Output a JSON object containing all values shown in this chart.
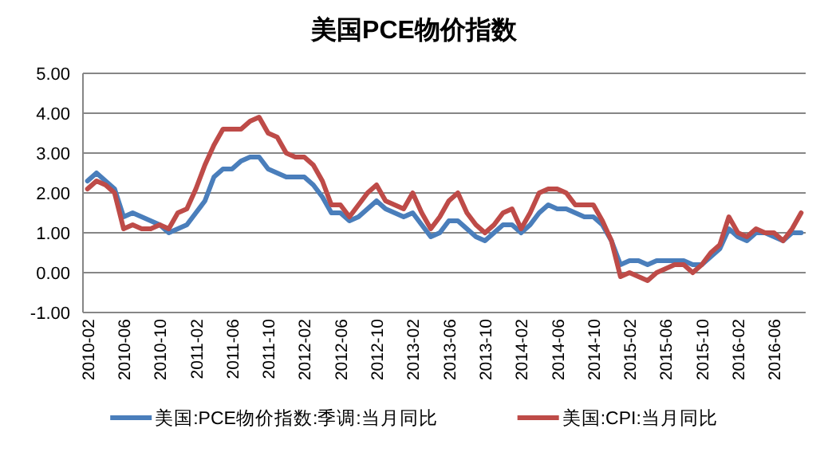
{
  "chart_data": {
    "type": "line",
    "title": "美国PCE物价指数",
    "categories": [
      "2010-02",
      null,
      null,
      null,
      "2010-06",
      null,
      null,
      null,
      "2010-10",
      null,
      null,
      null,
      "2011-02",
      null,
      null,
      null,
      "2011-06",
      null,
      null,
      null,
      "2011-10",
      null,
      null,
      null,
      "2012-02",
      null,
      null,
      null,
      "2012-06",
      null,
      null,
      null,
      "2012-10",
      null,
      null,
      null,
      "2013-02",
      null,
      null,
      null,
      "2013-06",
      null,
      null,
      null,
      "2013-10",
      null,
      null,
      null,
      "2014-02",
      null,
      null,
      null,
      "2014-06",
      null,
      null,
      null,
      "2014-10",
      null,
      null,
      null,
      "2015-02",
      null,
      null,
      null,
      "2015-06",
      null,
      null,
      null,
      "2015-10",
      null,
      null,
      null,
      "2016-02",
      null,
      null,
      null,
      "2016-06",
      null,
      null,
      null
    ],
    "series": [
      {
        "name": "美国:PCE物价指数:季调:当月同比",
        "color": "#4a7ebb",
        "values": [
          2.3,
          2.5,
          2.3,
          2.1,
          1.4,
          1.5,
          1.4,
          1.3,
          1.2,
          1.0,
          1.1,
          1.2,
          1.5,
          1.8,
          2.4,
          2.6,
          2.6,
          2.8,
          2.9,
          2.9,
          2.6,
          2.5,
          2.4,
          2.4,
          2.4,
          2.2,
          1.9,
          1.5,
          1.5,
          1.3,
          1.4,
          1.6,
          1.8,
          1.6,
          1.5,
          1.4,
          1.5,
          1.2,
          0.9,
          1.0,
          1.3,
          1.3,
          1.1,
          0.9,
          0.8,
          1.0,
          1.2,
          1.2,
          1.0,
          1.2,
          1.5,
          1.7,
          1.6,
          1.6,
          1.5,
          1.4,
          1.4,
          1.2,
          0.8,
          0.2,
          0.3,
          0.3,
          0.2,
          0.3,
          0.3,
          0.3,
          0.3,
          0.2,
          0.2,
          0.4,
          0.6,
          1.1,
          0.9,
          0.8,
          1.0,
          1.0,
          0.9,
          0.8,
          1.0,
          1.0
        ]
      },
      {
        "name": "美国:CPI:当月同比",
        "color": "#be4b48",
        "values": [
          2.1,
          2.3,
          2.2,
          2.0,
          1.1,
          1.2,
          1.1,
          1.1,
          1.2,
          1.1,
          1.5,
          1.6,
          2.1,
          2.7,
          3.2,
          3.6,
          3.6,
          3.6,
          3.8,
          3.9,
          3.5,
          3.4,
          3.0,
          2.9,
          2.9,
          2.7,
          2.3,
          1.7,
          1.7,
          1.4,
          1.7,
          2.0,
          2.2,
          1.8,
          1.7,
          1.6,
          2.0,
          1.5,
          1.1,
          1.4,
          1.8,
          2.0,
          1.5,
          1.2,
          1.0,
          1.2,
          1.5,
          1.6,
          1.1,
          1.5,
          2.0,
          2.1,
          2.1,
          2.0,
          1.7,
          1.7,
          1.7,
          1.3,
          0.8,
          -0.1,
          0.0,
          -0.1,
          -0.2,
          0.0,
          0.1,
          0.2,
          0.2,
          0.0,
          0.2,
          0.5,
          0.7,
          1.4,
          1.0,
          0.9,
          1.1,
          1.0,
          1.0,
          0.8,
          1.1,
          1.5
        ]
      }
    ],
    "ylim": [
      -1,
      5
    ],
    "yticks": [
      {
        "value": -1,
        "label": "-1.00"
      },
      {
        "value": 0,
        "label": "0.00"
      },
      {
        "value": 1,
        "label": "1.00"
      },
      {
        "value": 2,
        "label": "2.00"
      },
      {
        "value": 3,
        "label": "3.00"
      },
      {
        "value": 4,
        "label": "4.00"
      },
      {
        "value": 5,
        "label": "5.00"
      }
    ],
    "grid": "y",
    "legend": "bottom",
    "marker": "none",
    "line_style": "solid"
  }
}
